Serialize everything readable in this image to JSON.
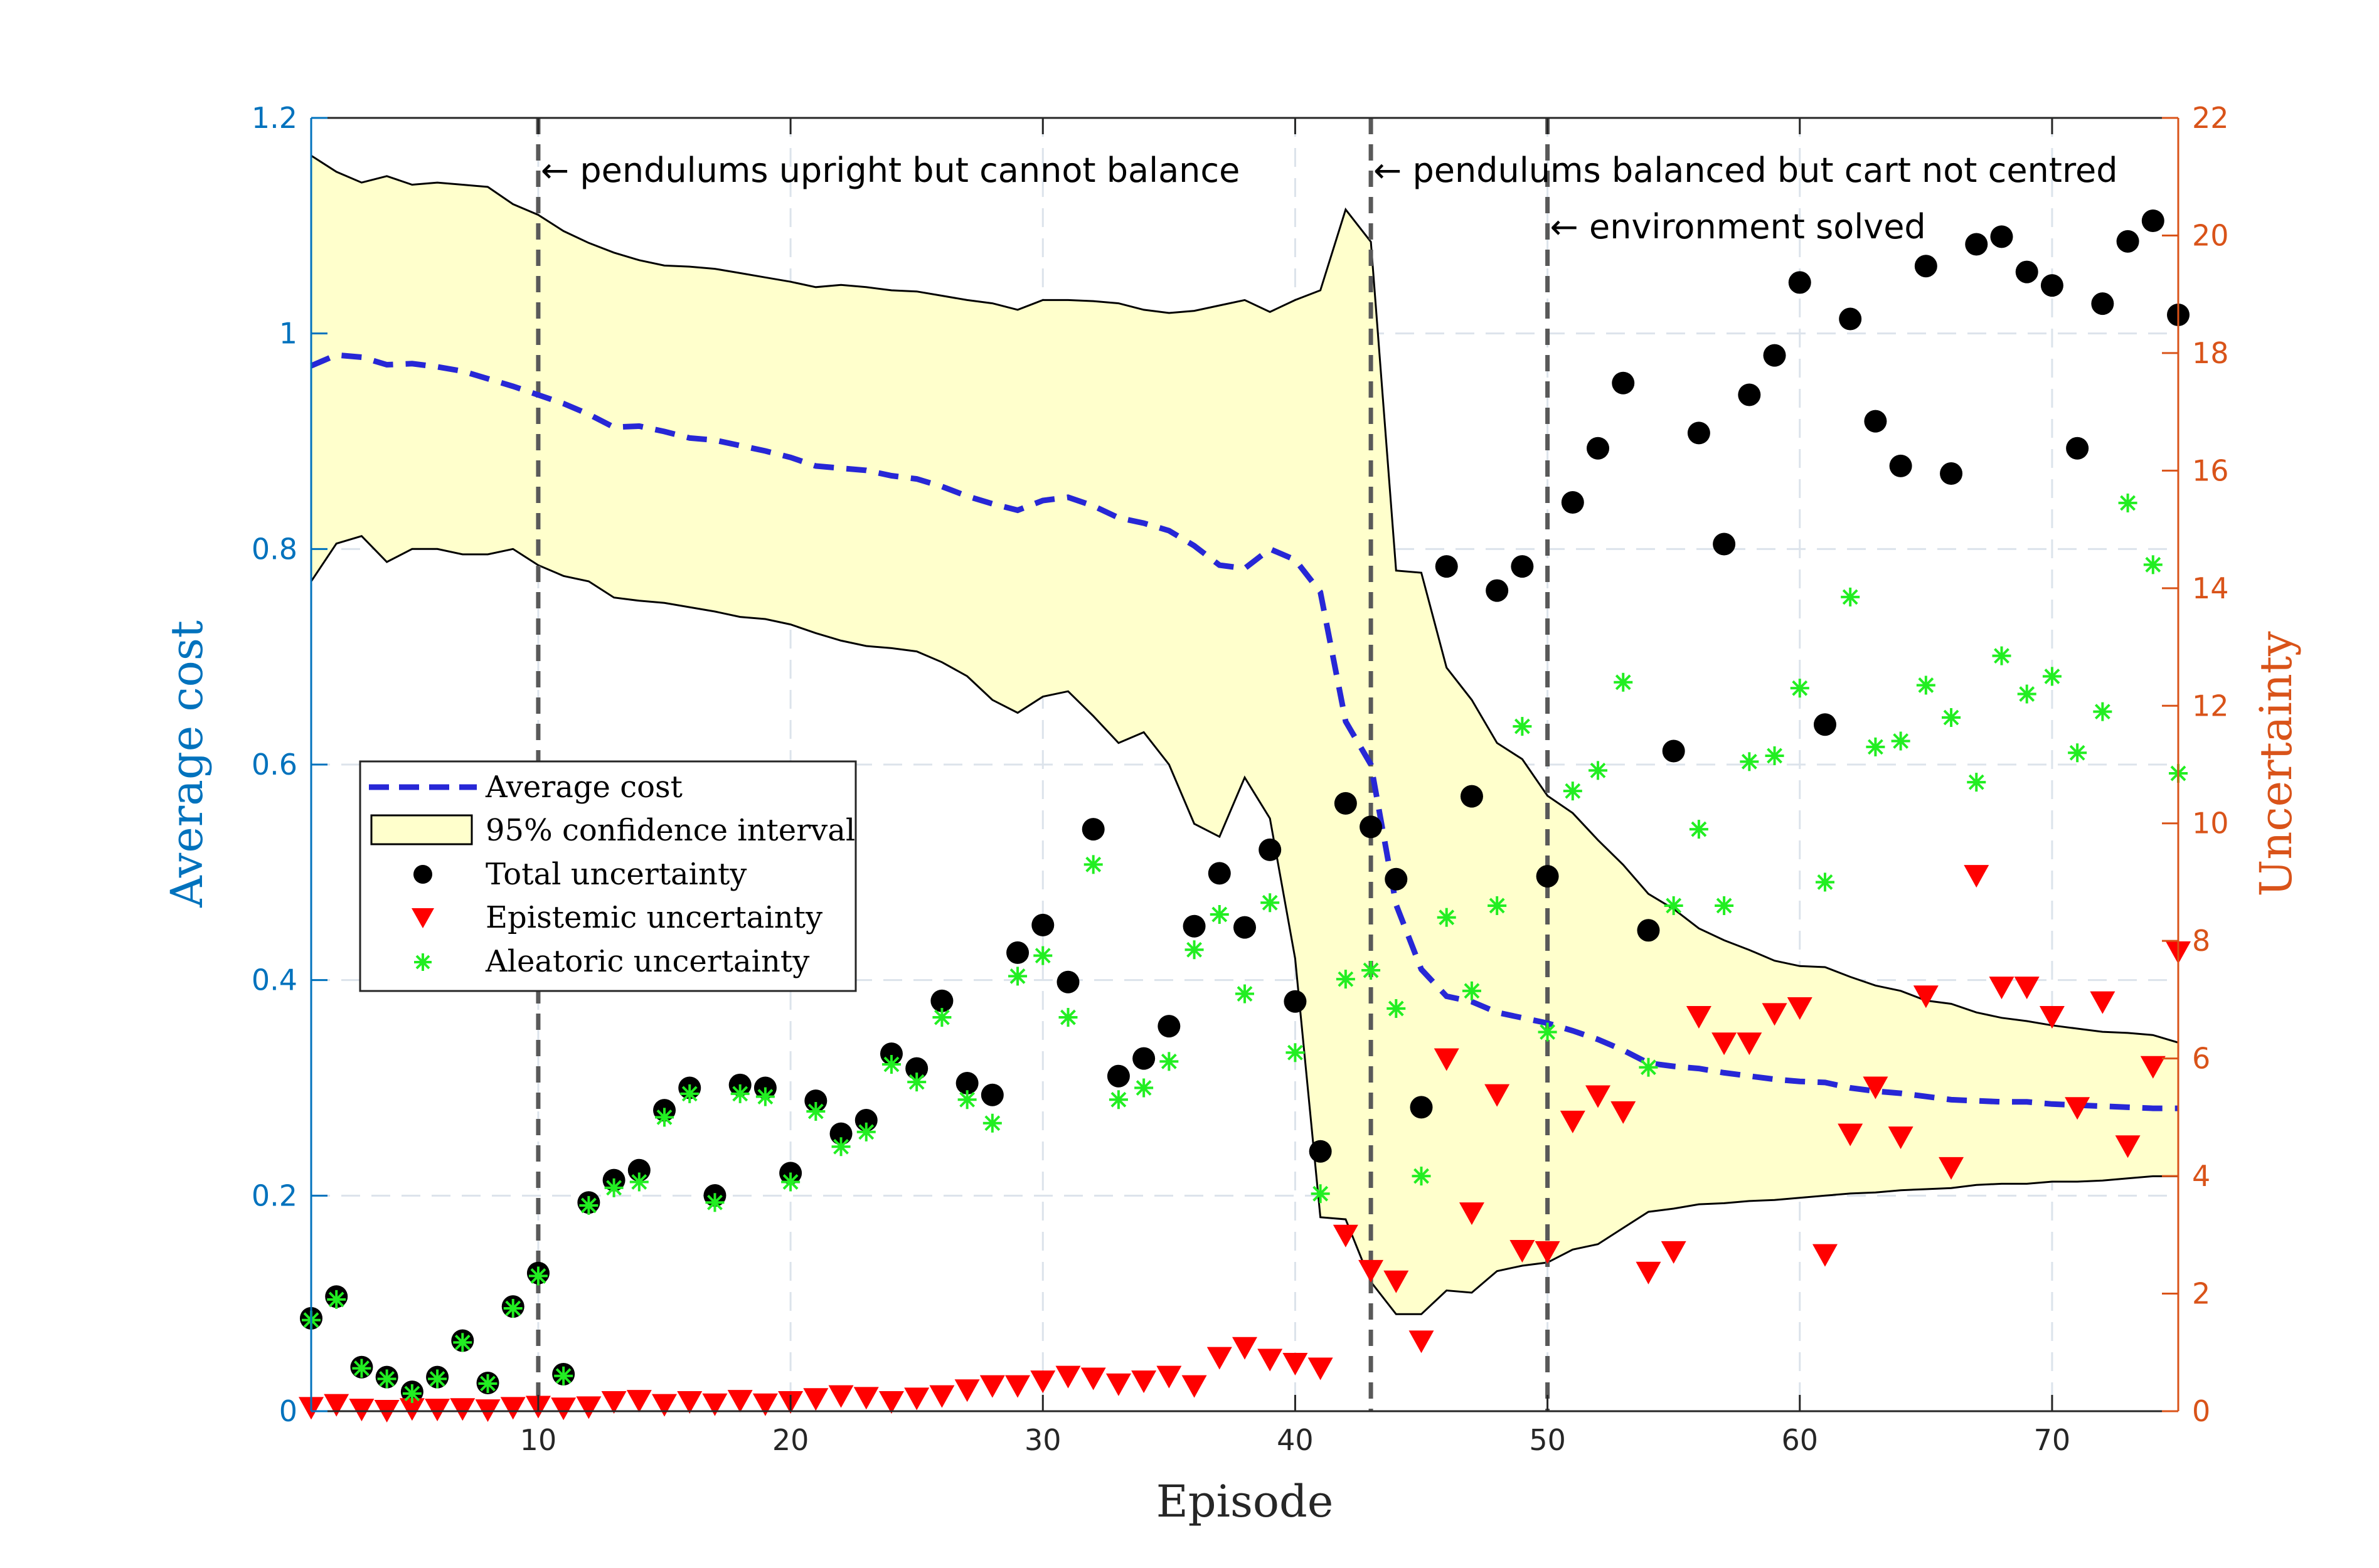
{
  "chart_data": {
    "type": "scatter",
    "xlabel": "Episode",
    "ylabel_left": "Average cost",
    "ylabel_right": "Uncertainty",
    "xlim": [
      1,
      75
    ],
    "ylim_left": [
      0,
      1.2
    ],
    "ylim_right": [
      0,
      22
    ],
    "x_ticks": [
      10,
      20,
      30,
      40,
      50,
      60,
      70
    ],
    "y_left_ticks": [
      0,
      0.2,
      0.4,
      0.6,
      0.8,
      1,
      1.2
    ],
    "y_left_tick_labels": [
      "0",
      "0.2",
      "0.4",
      "0.6",
      "0.8",
      "1",
      "1.2"
    ],
    "y_right_ticks": [
      0,
      2,
      4,
      6,
      8,
      10,
      12,
      14,
      16,
      18,
      20,
      22
    ],
    "grid": true,
    "legend_position": "middle-left",
    "colors": {
      "left_axis": "#0072BD",
      "right_axis": "#D95319",
      "average_cost": "#2727D6",
      "confidence_fill": "#FFFFCC",
      "total": "#000000",
      "epistemic": "#FF0000",
      "aleatoric": "#22EE22"
    },
    "annotations": [
      {
        "x": 10,
        "text": "← pendulums upright but cannot balance",
        "row": 1
      },
      {
        "x": 43,
        "text": "← pendulums balanced but cart not centred",
        "row": 1
      },
      {
        "x": 50,
        "text": "← environment solved",
        "row": 2
      }
    ],
    "legend": [
      {
        "label": "Average cost",
        "symbol": "dashed-line"
      },
      {
        "label": "95% confidence interval",
        "symbol": "patch"
      },
      {
        "label": "Total uncertainty",
        "symbol": "filled-circle"
      },
      {
        "label": "Epistemic uncertainty",
        "symbol": "down-triangle"
      },
      {
        "label": "Aleatoric uncertainty",
        "symbol": "asterisk"
      }
    ],
    "x": [
      1,
      2,
      3,
      4,
      5,
      6,
      7,
      8,
      9,
      10,
      11,
      12,
      13,
      14,
      15,
      16,
      17,
      18,
      19,
      20,
      21,
      22,
      23,
      24,
      25,
      26,
      27,
      28,
      29,
      30,
      31,
      32,
      33,
      34,
      35,
      36,
      37,
      38,
      39,
      40,
      41,
      42,
      43,
      44,
      45,
      46,
      47,
      48,
      49,
      50,
      51,
      52,
      53,
      54,
      55,
      56,
      57,
      58,
      59,
      60,
      61,
      62,
      63,
      64,
      65,
      66,
      67,
      68,
      69,
      70,
      71,
      72,
      73,
      74,
      75
    ],
    "series": [
      {
        "name": "Average cost",
        "axis": "left",
        "style": "dashed-line",
        "values": [
          0.97,
          0.98,
          0.978,
          0.971,
          0.972,
          0.969,
          0.965,
          0.958,
          0.951,
          0.943,
          0.935,
          0.925,
          0.913,
          0.914,
          0.909,
          0.903,
          0.901,
          0.896,
          0.891,
          0.885,
          0.877,
          0.875,
          0.873,
          0.868,
          0.865,
          0.858,
          0.849,
          0.842,
          0.836,
          0.845,
          0.848,
          0.84,
          0.829,
          0.824,
          0.817,
          0.803,
          0.785,
          0.782,
          0.8,
          0.79,
          0.76,
          0.64,
          0.6,
          0.47,
          0.41,
          0.385,
          0.38,
          0.37,
          0.365,
          0.36,
          0.353,
          0.345,
          0.335,
          0.323,
          0.32,
          0.318,
          0.314,
          0.311,
          0.308,
          0.306,
          0.305,
          0.3,
          0.297,
          0.295,
          0.292,
          0.289,
          0.288,
          0.287,
          0.287,
          0.285,
          0.284,
          0.283,
          0.282,
          0.281,
          0.281
        ]
      },
      {
        "name": "95% confidence interval upper",
        "axis": "left",
        "style": "band-upper",
        "values": [
          1.165,
          1.15,
          1.14,
          1.146,
          1.138,
          1.14,
          1.138,
          1.136,
          1.12,
          1.11,
          1.095,
          1.084,
          1.075,
          1.068,
          1.063,
          1.062,
          1.06,
          1.056,
          1.052,
          1.048,
          1.043,
          1.045,
          1.043,
          1.04,
          1.039,
          1.035,
          1.031,
          1.028,
          1.022,
          1.031,
          1.031,
          1.03,
          1.028,
          1.022,
          1.019,
          1.021,
          1.026,
          1.031,
          1.02,
          1.031,
          1.04,
          1.115,
          1.085,
          0.78,
          0.778,
          0.69,
          0.66,
          0.62,
          0.605,
          0.571,
          0.555,
          0.53,
          0.507,
          0.48,
          0.466,
          0.448,
          0.437,
          0.428,
          0.418,
          0.413,
          0.412,
          0.403,
          0.395,
          0.39,
          0.381,
          0.378,
          0.37,
          0.365,
          0.362,
          0.358,
          0.355,
          0.352,
          0.351,
          0.349,
          0.342
        ]
      },
      {
        "name": "95% confidence interval lower",
        "axis": "left",
        "style": "band-lower",
        "values": [
          0.77,
          0.805,
          0.812,
          0.788,
          0.8,
          0.8,
          0.795,
          0.795,
          0.8,
          0.785,
          0.775,
          0.77,
          0.755,
          0.752,
          0.75,
          0.746,
          0.742,
          0.737,
          0.735,
          0.73,
          0.722,
          0.715,
          0.71,
          0.708,
          0.705,
          0.695,
          0.682,
          0.66,
          0.648,
          0.663,
          0.668,
          0.645,
          0.62,
          0.63,
          0.6,
          0.545,
          0.533,
          0.588,
          0.55,
          0.42,
          0.18,
          0.178,
          0.12,
          0.09,
          0.09,
          0.112,
          0.11,
          0.13,
          0.135,
          0.138,
          0.15,
          0.155,
          0.17,
          0.185,
          0.188,
          0.192,
          0.193,
          0.195,
          0.196,
          0.198,
          0.2,
          0.202,
          0.203,
          0.205,
          0.206,
          0.207,
          0.21,
          0.211,
          0.211,
          0.213,
          0.213,
          0.214,
          0.216,
          0.218,
          0.218
        ]
      },
      {
        "name": "Total uncertainty",
        "axis": "right",
        "style": "filled-circle",
        "values": [
          1.58,
          1.95,
          0.75,
          0.58,
          0.33,
          0.58,
          1.2,
          0.48,
          1.78,
          2.35,
          0.63,
          3.55,
          3.93,
          4.1,
          5.12,
          5.5,
          3.67,
          5.55,
          5.5,
          4.05,
          5.28,
          4.72,
          4.95,
          6.08,
          5.83,
          6.98,
          5.58,
          5.38,
          7.8,
          8.27,
          7.3,
          9.9,
          5.7,
          6.0,
          6.55,
          8.25,
          9.15,
          8.23,
          9.55,
          6.97,
          4.42,
          10.34,
          9.94,
          9.05,
          5.17,
          14.37,
          10.46,
          13.96,
          14.37,
          9.1,
          15.46,
          16.38,
          17.49,
          8.18,
          11.23,
          16.64,
          14.75,
          17.29,
          17.96,
          19.2,
          11.68,
          18.58,
          16.84,
          16.08,
          19.48,
          15.95,
          19.85,
          19.98,
          19.38,
          19.15,
          16.38,
          18.84,
          19.9,
          20.25,
          18.65
        ]
      },
      {
        "name": "Epistemic uncertainty",
        "axis": "right",
        "style": "down-triangle",
        "values": [
          0.05,
          0.1,
          0.02,
          0.0,
          0.03,
          0.02,
          0.03,
          0.01,
          0.05,
          0.07,
          0.04,
          0.06,
          0.15,
          0.17,
          0.1,
          0.15,
          0.11,
          0.17,
          0.11,
          0.15,
          0.2,
          0.25,
          0.22,
          0.15,
          0.21,
          0.25,
          0.35,
          0.42,
          0.42,
          0.5,
          0.58,
          0.55,
          0.45,
          0.5,
          0.58,
          0.42,
          0.9,
          1.07,
          0.87,
          0.8,
          0.72,
          2.98,
          2.38,
          2.2,
          1.18,
          5.98,
          3.36,
          5.37,
          2.72,
          2.7,
          4.92,
          5.35,
          5.08,
          2.35,
          2.7,
          6.7,
          6.25,
          6.25,
          6.75,
          6.85,
          2.65,
          4.7,
          5.5,
          4.65,
          7.05,
          4.13,
          9.1,
          7.2,
          7.2,
          6.7,
          5.15,
          6.95,
          4.5,
          5.85,
          7.8
        ]
      },
      {
        "name": "Aleatoric uncertainty",
        "axis": "right",
        "style": "asterisk",
        "values": [
          1.55,
          1.9,
          0.73,
          0.55,
          0.3,
          0.55,
          1.17,
          0.47,
          1.75,
          2.3,
          0.6,
          3.5,
          3.8,
          3.9,
          5.0,
          5.4,
          3.55,
          5.4,
          5.35,
          3.9,
          5.1,
          4.5,
          4.75,
          5.9,
          5.6,
          6.7,
          5.3,
          4.9,
          7.4,
          7.75,
          6.7,
          9.3,
          5.3,
          5.5,
          5.95,
          7.85,
          8.45,
          7.1,
          8.65,
          6.1,
          3.7,
          7.35,
          7.5,
          6.85,
          4.0,
          8.4,
          7.15,
          8.6,
          11.65,
          6.45,
          10.55,
          10.9,
          12.4,
          5.85,
          8.6,
          9.9,
          8.6,
          11.05,
          11.15,
          12.3,
          9.0,
          13.85,
          11.3,
          11.4,
          12.35,
          11.8,
          10.7,
          12.85,
          12.2,
          12.5,
          11.2,
          11.9,
          15.45,
          14.4,
          10.85
        ]
      }
    ]
  }
}
